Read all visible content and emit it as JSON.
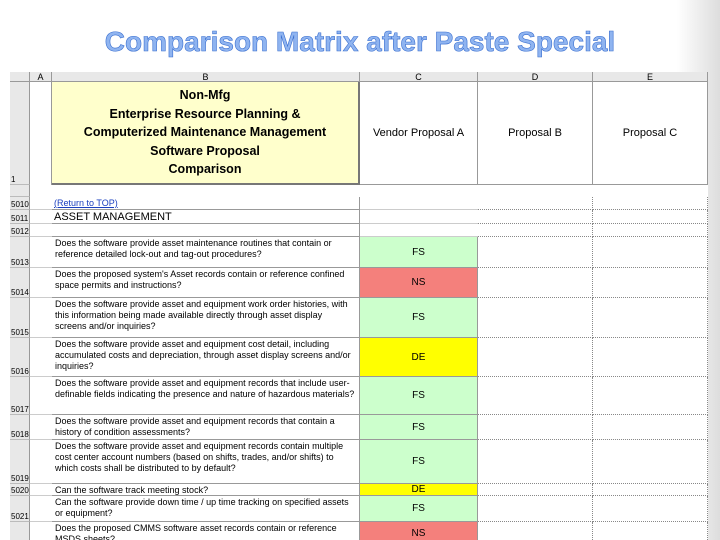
{
  "title": "Comparison Matrix after Paste Special",
  "columns": [
    "A",
    "B",
    "C",
    "D",
    "E"
  ],
  "header": {
    "row_number": "1",
    "heading_lines": [
      "Non-Mfg",
      "Enterprise Resource Planning &",
      "Computerized Maintenance Management",
      "Software Proposal",
      "Comparison"
    ],
    "vendors": [
      "Vendor Proposal A",
      "Proposal B",
      "Proposal C"
    ]
  },
  "rows": [
    {
      "number": "5010",
      "text": "(Return to TOP)",
      "style": "link"
    },
    {
      "number": "5011",
      "text": "ASSET MANAGEMENT",
      "style": "heading"
    },
    {
      "number": "5012"
    },
    {
      "number": "5013",
      "text": "Does the software provide asset maintenance routines that contain or reference detailed lock-out and tag-out procedures?",
      "status": "FS",
      "fill": "#ccffcc"
    },
    {
      "number": "5014",
      "text": "Does the proposed system's Asset records contain or reference confined space permits and instructions?",
      "status": "NS",
      "fill": "#f4807c"
    },
    {
      "number": "5015",
      "text": "Does the software provide asset and equipment work order histories, with this information being made available directly through asset display screens and/or inquiries?",
      "status": "FS",
      "fill": "#ccffcc"
    },
    {
      "number": "5016",
      "text": "Does the software provide asset and equipment cost detail, including accumulated costs and depreciation, through asset display screens and/or inquiries?",
      "status": "DE",
      "fill": "#ffff00"
    },
    {
      "number": "5017",
      "text": "Does the software provide asset and equipment records that include user-definable fields indicating the presence and nature of hazardous materials?",
      "status": "FS",
      "fill": "#ccffcc"
    },
    {
      "number": "5018",
      "text": "Does the software provide asset and equipment records that contain a history of condition assessments?",
      "status": "FS",
      "fill": "#ccffcc"
    },
    {
      "number": "5019",
      "text": "Does the software provide asset and equipment records contain multiple cost center account numbers (based on shifts, trades, and/or shifts) to which costs shall be distributed to by default?",
      "status": "FS",
      "fill": "#ccffcc"
    },
    {
      "number": "5020",
      "text": "Can the software track meeting stock?",
      "status": "DE",
      "fill": "#ffff00"
    },
    {
      "number": "5021",
      "text": "Can the software provide down time / up time tracking on specified assets or equipment?",
      "status": "FS",
      "fill": "#ccffcc"
    },
    {
      "text": "Does the proposed CMMS software asset records contain or reference MSDS sheets?",
      "status": "NS",
      "fill": "#f4807c"
    }
  ]
}
